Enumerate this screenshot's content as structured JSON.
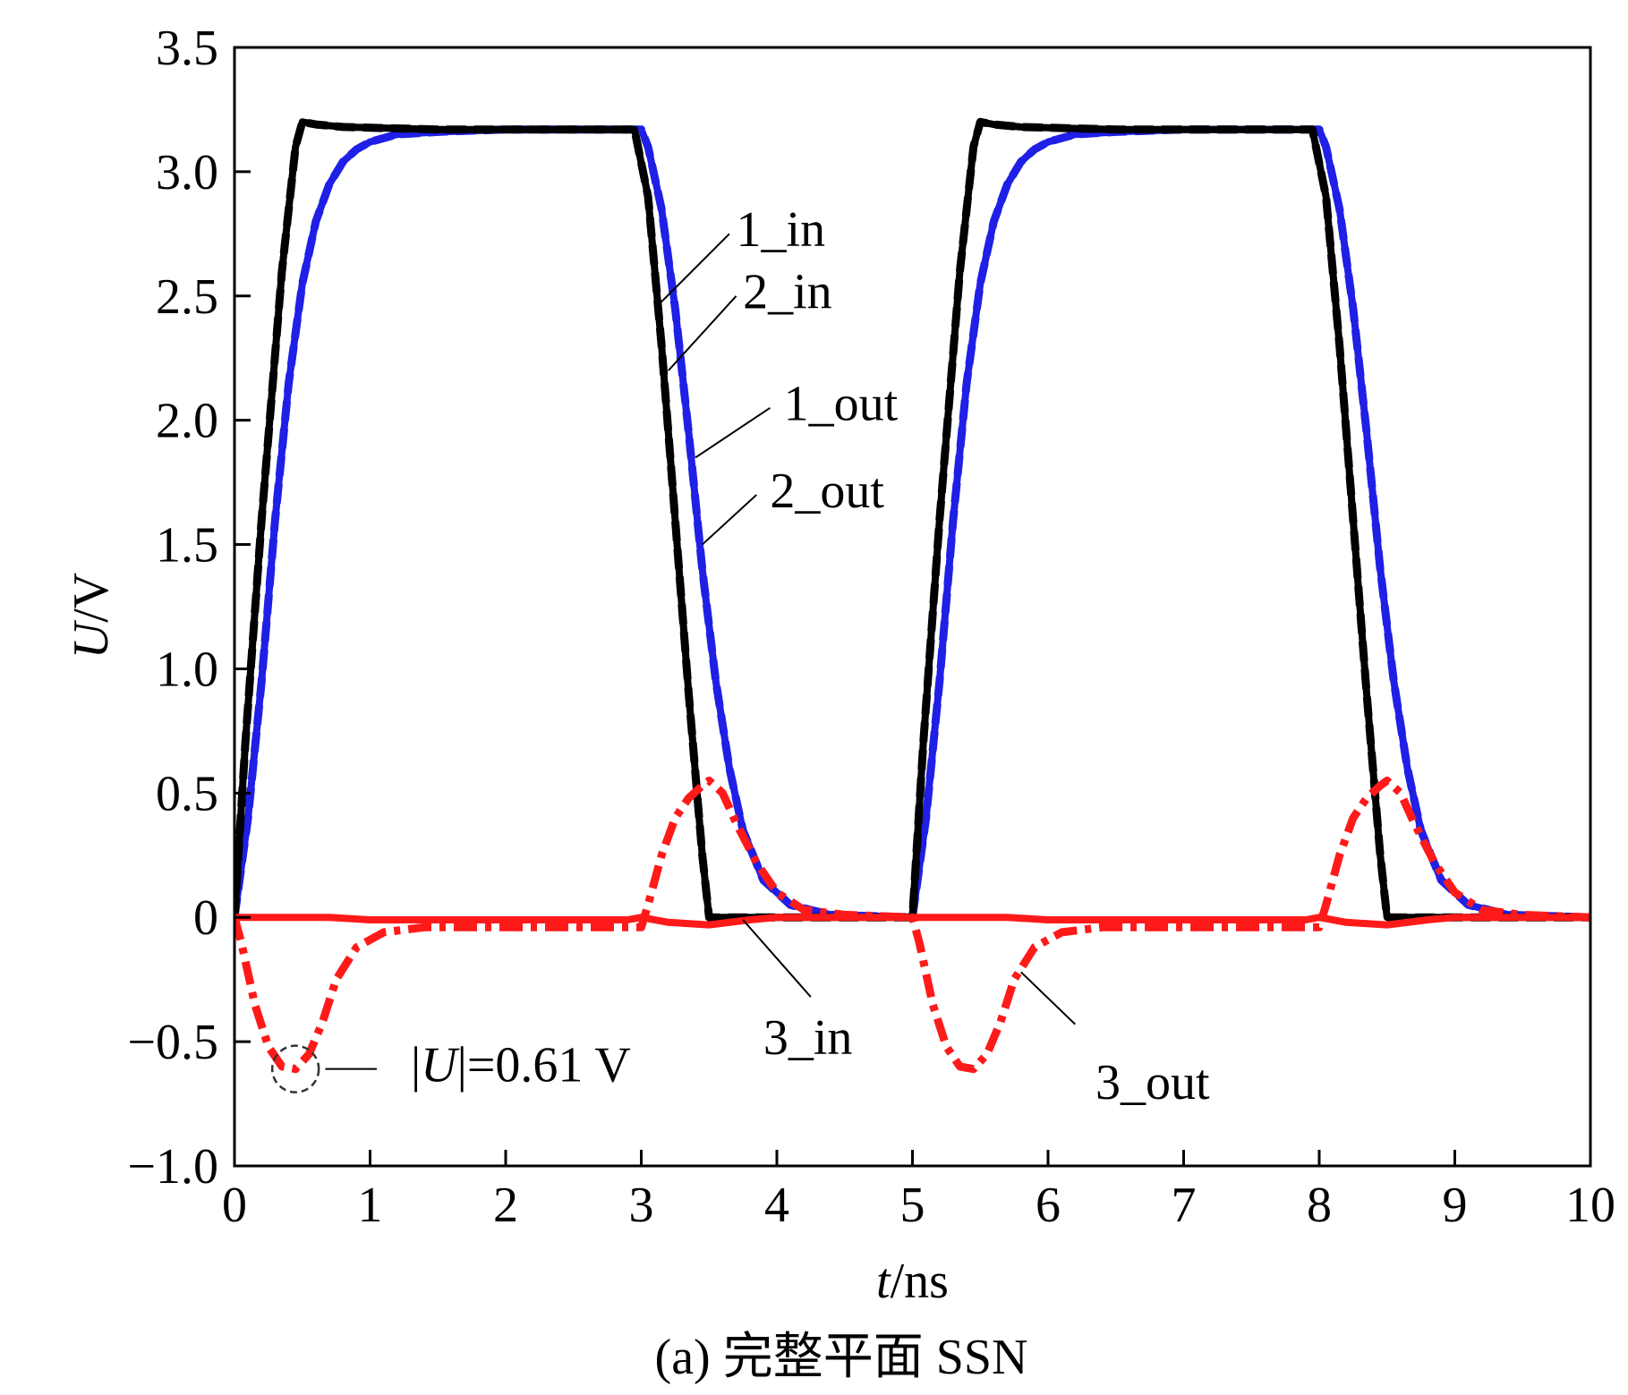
{
  "chart_data": {
    "type": "line",
    "xlabel_var": "t",
    "xlabel_unit": "/ns",
    "ylabel_var": "U",
    "ylabel_unit": "/V",
    "xlim": [
      0,
      10
    ],
    "ylim": [
      -1.0,
      3.5
    ],
    "x_ticks": [
      0,
      1,
      2,
      3,
      4,
      5,
      6,
      7,
      8,
      9,
      10
    ],
    "x_tick_labels": [
      "0",
      "1",
      "2",
      "3",
      "4",
      "5",
      "6",
      "7",
      "8",
      "9",
      "10"
    ],
    "y_ticks": [
      -1.0,
      -0.5,
      0,
      0.5,
      1.0,
      1.5,
      2.0,
      2.5,
      3.0,
      3.5
    ],
    "y_tick_labels": [
      "−1.0",
      "−0.5",
      "0",
      "0.5",
      "1.0",
      "1.5",
      "2.0",
      "2.5",
      "3.0",
      "3.5"
    ],
    "grid": false,
    "series": [
      {
        "name": "1_in",
        "color": "#000000",
        "style": "solid",
        "x": [
          0,
          0.08,
          0.2,
          0.35,
          0.45,
          0.5,
          0.6,
          0.8,
          1.5,
          2.5,
          2.95,
          3.05,
          3.15,
          3.25,
          3.35,
          3.45,
          3.5,
          4.0,
          4.95,
          5.0,
          5.08,
          5.2,
          5.35,
          5.45,
          5.5,
          5.6,
          5.8,
          6.5,
          7.5,
          7.95,
          8.05,
          8.15,
          8.25,
          8.35,
          8.45,
          8.5,
          9.0,
          10.0
        ],
        "y": [
          0,
          0.7,
          1.6,
          2.6,
          3.1,
          3.2,
          3.19,
          3.18,
          3.17,
          3.17,
          3.17,
          2.9,
          2.3,
          1.6,
          0.9,
          0.25,
          0,
          0,
          0,
          0,
          0.7,
          1.6,
          2.6,
          3.1,
          3.2,
          3.19,
          3.18,
          3.17,
          3.17,
          3.17,
          2.9,
          2.3,
          1.6,
          0.9,
          0.25,
          0,
          0,
          0
        ]
      },
      {
        "name": "2_in",
        "color": "#000000",
        "style": "dashed",
        "x": [
          0,
          0.08,
          0.2,
          0.35,
          0.45,
          0.5,
          0.6,
          0.8,
          1.5,
          2.5,
          2.95,
          3.05,
          3.15,
          3.25,
          3.35,
          3.45,
          3.5,
          4.0,
          4.95,
          5.0,
          5.08,
          5.2,
          5.35,
          5.45,
          5.5,
          5.6,
          5.8,
          6.5,
          7.5,
          7.95,
          8.05,
          8.15,
          8.25,
          8.35,
          8.45,
          8.5,
          9.0,
          10.0
        ],
        "y": [
          0,
          0.7,
          1.6,
          2.6,
          3.1,
          3.2,
          3.19,
          3.18,
          3.17,
          3.17,
          3.17,
          2.9,
          2.3,
          1.6,
          0.9,
          0.25,
          0,
          0,
          0,
          0,
          0.7,
          1.6,
          2.6,
          3.1,
          3.2,
          3.19,
          3.18,
          3.17,
          3.17,
          3.17,
          2.9,
          2.3,
          1.6,
          0.9,
          0.25,
          0,
          0,
          0
        ]
      },
      {
        "name": "1_out",
        "color": "#1f1fe6",
        "style": "solid",
        "x": [
          0,
          0.1,
          0.2,
          0.3,
          0.4,
          0.5,
          0.6,
          0.7,
          0.8,
          0.9,
          1.0,
          1.2,
          1.5,
          2.0,
          3.0,
          3.05,
          3.15,
          3.25,
          3.35,
          3.45,
          3.55,
          3.65,
          3.75,
          3.9,
          4.1,
          4.4,
          5.0,
          5.1,
          5.2,
          5.3,
          5.4,
          5.5,
          5.6,
          5.7,
          5.8,
          5.9,
          6.0,
          6.2,
          6.5,
          7.0,
          8.0,
          8.05,
          8.15,
          8.25,
          8.35,
          8.45,
          8.55,
          8.65,
          8.75,
          8.9,
          9.1,
          9.4,
          10.0
        ],
        "y": [
          0,
          0.4,
          0.95,
          1.6,
          2.15,
          2.55,
          2.8,
          2.95,
          3.04,
          3.09,
          3.12,
          3.15,
          3.16,
          3.17,
          3.17,
          3.1,
          2.85,
          2.45,
          1.95,
          1.4,
          0.95,
          0.6,
          0.35,
          0.15,
          0.05,
          0.01,
          0,
          0.4,
          0.95,
          1.6,
          2.15,
          2.55,
          2.8,
          2.95,
          3.04,
          3.09,
          3.12,
          3.15,
          3.16,
          3.17,
          3.17,
          3.1,
          2.85,
          2.45,
          1.95,
          1.4,
          0.95,
          0.6,
          0.35,
          0.15,
          0.05,
          0.01,
          0
        ]
      },
      {
        "name": "2_out",
        "color": "#1f1fe6",
        "style": "dashed",
        "x": [
          0,
          0.1,
          0.2,
          0.3,
          0.4,
          0.5,
          0.6,
          0.7,
          0.8,
          0.9,
          1.0,
          1.2,
          1.5,
          2.0,
          3.0,
          3.05,
          3.15,
          3.25,
          3.35,
          3.45,
          3.55,
          3.65,
          3.75,
          3.9,
          4.1,
          4.4,
          5.0,
          5.1,
          5.2,
          5.3,
          5.4,
          5.5,
          5.6,
          5.7,
          5.8,
          5.9,
          6.0,
          6.2,
          6.5,
          7.0,
          8.0,
          8.05,
          8.15,
          8.25,
          8.35,
          8.45,
          8.55,
          8.65,
          8.75,
          8.9,
          9.1,
          9.4,
          10.0
        ],
        "y": [
          0,
          0.4,
          0.95,
          1.6,
          2.15,
          2.55,
          2.8,
          2.95,
          3.04,
          3.09,
          3.12,
          3.15,
          3.16,
          3.17,
          3.17,
          3.1,
          2.85,
          2.45,
          1.95,
          1.4,
          0.95,
          0.6,
          0.35,
          0.15,
          0.05,
          0.01,
          0,
          0.4,
          0.95,
          1.6,
          2.15,
          2.55,
          2.8,
          2.95,
          3.04,
          3.09,
          3.12,
          3.15,
          3.16,
          3.17,
          3.17,
          3.1,
          2.85,
          2.45,
          1.95,
          1.4,
          0.95,
          0.6,
          0.35,
          0.15,
          0.05,
          0.01,
          0
        ]
      },
      {
        "name": "3_in",
        "color": "#ff1a1a",
        "style": "solid",
        "x": [
          0,
          0.7,
          1.0,
          2.9,
          3.0,
          3.2,
          3.5,
          3.8,
          4.0,
          5.0,
          5.7,
          6.0,
          7.9,
          8.0,
          8.2,
          8.5,
          8.8,
          9.0,
          10.0
        ],
        "y": [
          0,
          0,
          -0.01,
          -0.01,
          0,
          -0.02,
          -0.03,
          -0.01,
          0,
          0,
          0,
          -0.01,
          -0.01,
          0,
          -0.02,
          -0.03,
          -0.01,
          0,
          0
        ]
      },
      {
        "name": "3_out",
        "color": "#ff1a1a",
        "style": "dashdot",
        "x": [
          0,
          0.05,
          0.15,
          0.25,
          0.35,
          0.45,
          0.55,
          0.65,
          0.75,
          0.9,
          1.1,
          1.4,
          2.0,
          3.0,
          3.05,
          3.15,
          3.25,
          3.35,
          3.45,
          3.5,
          3.6,
          3.7,
          3.85,
          4.0,
          4.2,
          4.5,
          5.0,
          5.05,
          5.15,
          5.25,
          5.35,
          5.45,
          5.55,
          5.65,
          5.75,
          5.9,
          6.1,
          6.4,
          7.0,
          8.0,
          8.05,
          8.15,
          8.25,
          8.35,
          8.45,
          8.5,
          8.6,
          8.7,
          8.85,
          9.0,
          9.2,
          9.5,
          10.0
        ],
        "y": [
          0,
          -0.1,
          -0.35,
          -0.52,
          -0.6,
          -0.61,
          -0.55,
          -0.42,
          -0.25,
          -0.12,
          -0.06,
          -0.04,
          -0.04,
          -0.04,
          0.05,
          0.25,
          0.4,
          0.48,
          0.53,
          0.55,
          0.5,
          0.38,
          0.22,
          0.1,
          0.03,
          0.01,
          0,
          -0.1,
          -0.35,
          -0.52,
          -0.6,
          -0.61,
          -0.55,
          -0.42,
          -0.25,
          -0.12,
          -0.06,
          -0.04,
          -0.04,
          -0.04,
          0.05,
          0.25,
          0.4,
          0.48,
          0.53,
          0.55,
          0.5,
          0.38,
          0.22,
          0.1,
          0.03,
          0.01,
          0
        ]
      }
    ],
    "series_labels": [
      {
        "name": "1_in",
        "text": "1_in",
        "text_x": 3.7,
        "text_y": 2.7,
        "line": [
          [
            3.65,
            2.75
          ],
          [
            3.1,
            2.45
          ]
        ]
      },
      {
        "name": "2_in",
        "text": "2_in",
        "text_x": 3.75,
        "text_y": 2.45,
        "line": [
          [
            3.7,
            2.5
          ],
          [
            3.2,
            2.2
          ]
        ]
      },
      {
        "name": "1_out",
        "text": "1_out",
        "text_x": 4.05,
        "text_y": 2.0,
        "line": [
          [
            3.95,
            2.05
          ],
          [
            3.4,
            1.85
          ]
        ]
      },
      {
        "name": "2_out",
        "text": "2_out",
        "text_x": 3.95,
        "text_y": 1.65,
        "line": [
          [
            3.85,
            1.7
          ],
          [
            3.45,
            1.5
          ]
        ]
      },
      {
        "name": "3_in",
        "text": "3_in",
        "text_x": 3.9,
        "text_y": -0.55,
        "line": [
          [
            4.25,
            -0.32
          ],
          [
            3.75,
            -0.01
          ]
        ]
      },
      {
        "name": "3_out",
        "text": "3_out",
        "text_x": 6.35,
        "text_y": -0.73,
        "line": [
          [
            6.2,
            -0.43
          ],
          [
            5.8,
            -0.22
          ]
        ]
      }
    ],
    "annotations": [
      {
        "type": "marker_circle",
        "x": 0.45,
        "y": -0.61,
        "radius_data": 0.09
      },
      {
        "type": "label",
        "text_prefix": "|",
        "text_var": "U",
        "text_suffix": "|=0.61 V",
        "text_x": 1.3,
        "text_y": -0.66,
        "line": [
          [
            0.67,
            -0.61
          ],
          [
            1.05,
            -0.61
          ]
        ]
      }
    ],
    "caption": "(a) 完整平面 SSN"
  }
}
